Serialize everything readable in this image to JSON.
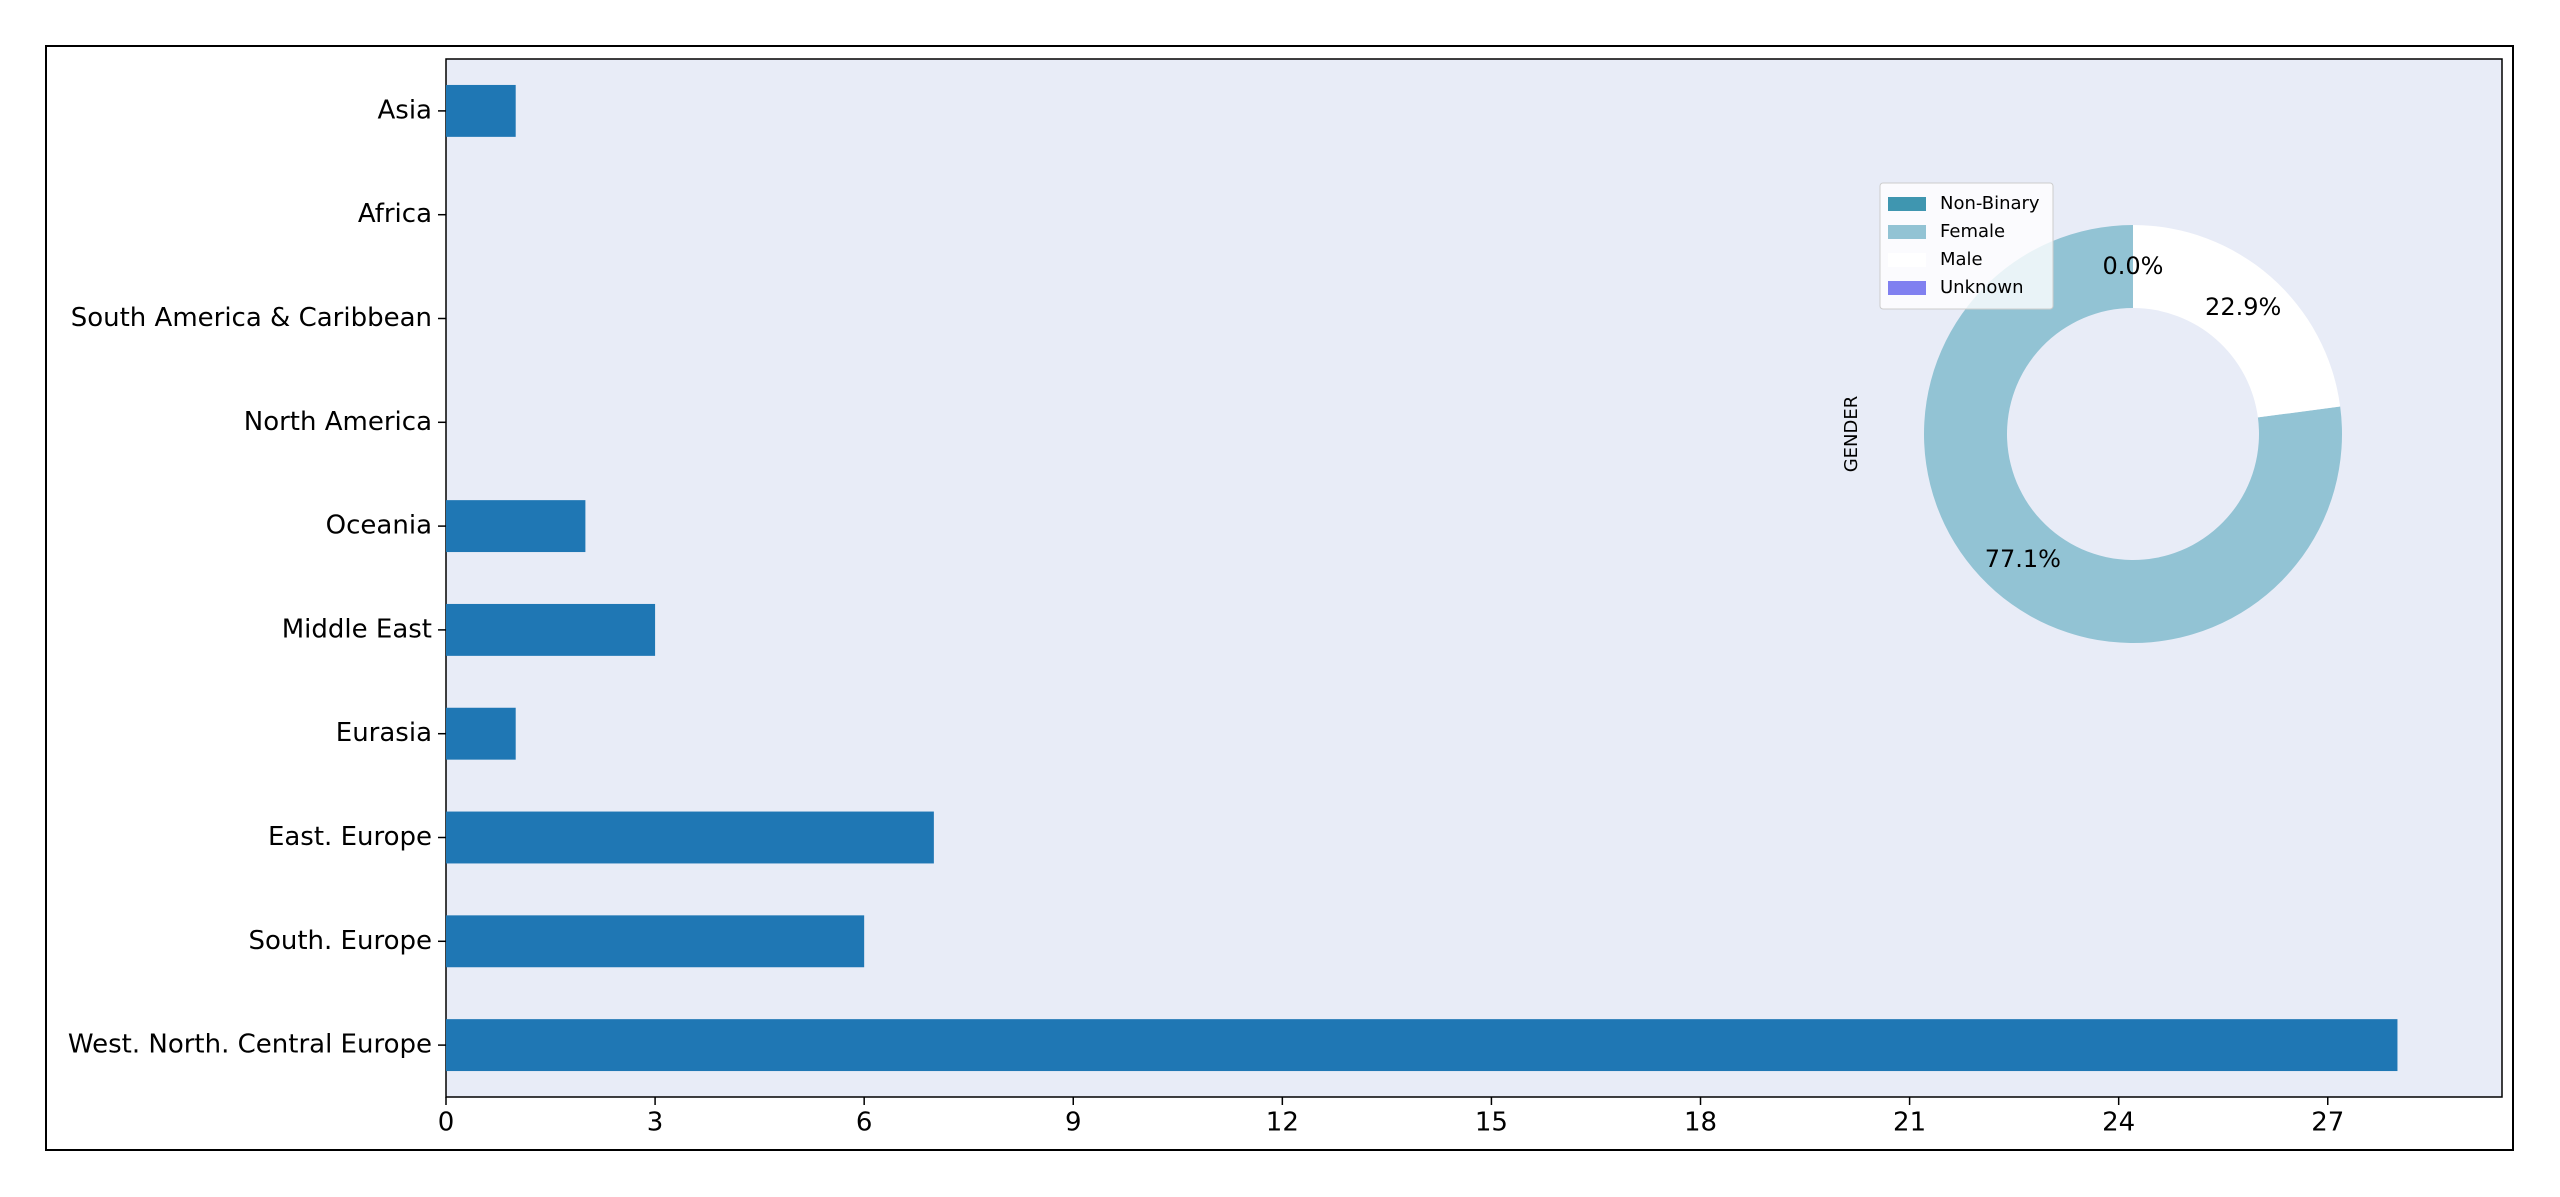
{
  "chart_data": [
    {
      "type": "barh",
      "categories": [
        "Asia",
        "Africa",
        "South America & Caribbean",
        "North America",
        "Oceania",
        "Middle East",
        "Eurasia",
        "East. Europe",
        "South. Europe",
        "West. North. Central Europe"
      ],
      "values": [
        1,
        0,
        0,
        0,
        2,
        3,
        1,
        7,
        6,
        28
      ],
      "color": "#1f77b4",
      "xlim": [
        0,
        29.5
      ],
      "xticks": [
        0,
        3,
        6,
        9,
        12,
        15,
        18,
        21,
        24,
        27
      ]
    },
    {
      "type": "pie",
      "ylabel": "GENDER",
      "categories": [
        "Non-Binary",
        "Female",
        "Male",
        "Unknown"
      ],
      "values": [
        0,
        77.1,
        22.9,
        0
      ],
      "value_labels": [
        "0.0%",
        "77.1%",
        "22.9%",
        "0.0%"
      ],
      "colors": [
        "#3f96b0",
        "#92c3d4",
        "#ffffff",
        "#8080f0"
      ],
      "legend": "upper left"
    }
  ]
}
